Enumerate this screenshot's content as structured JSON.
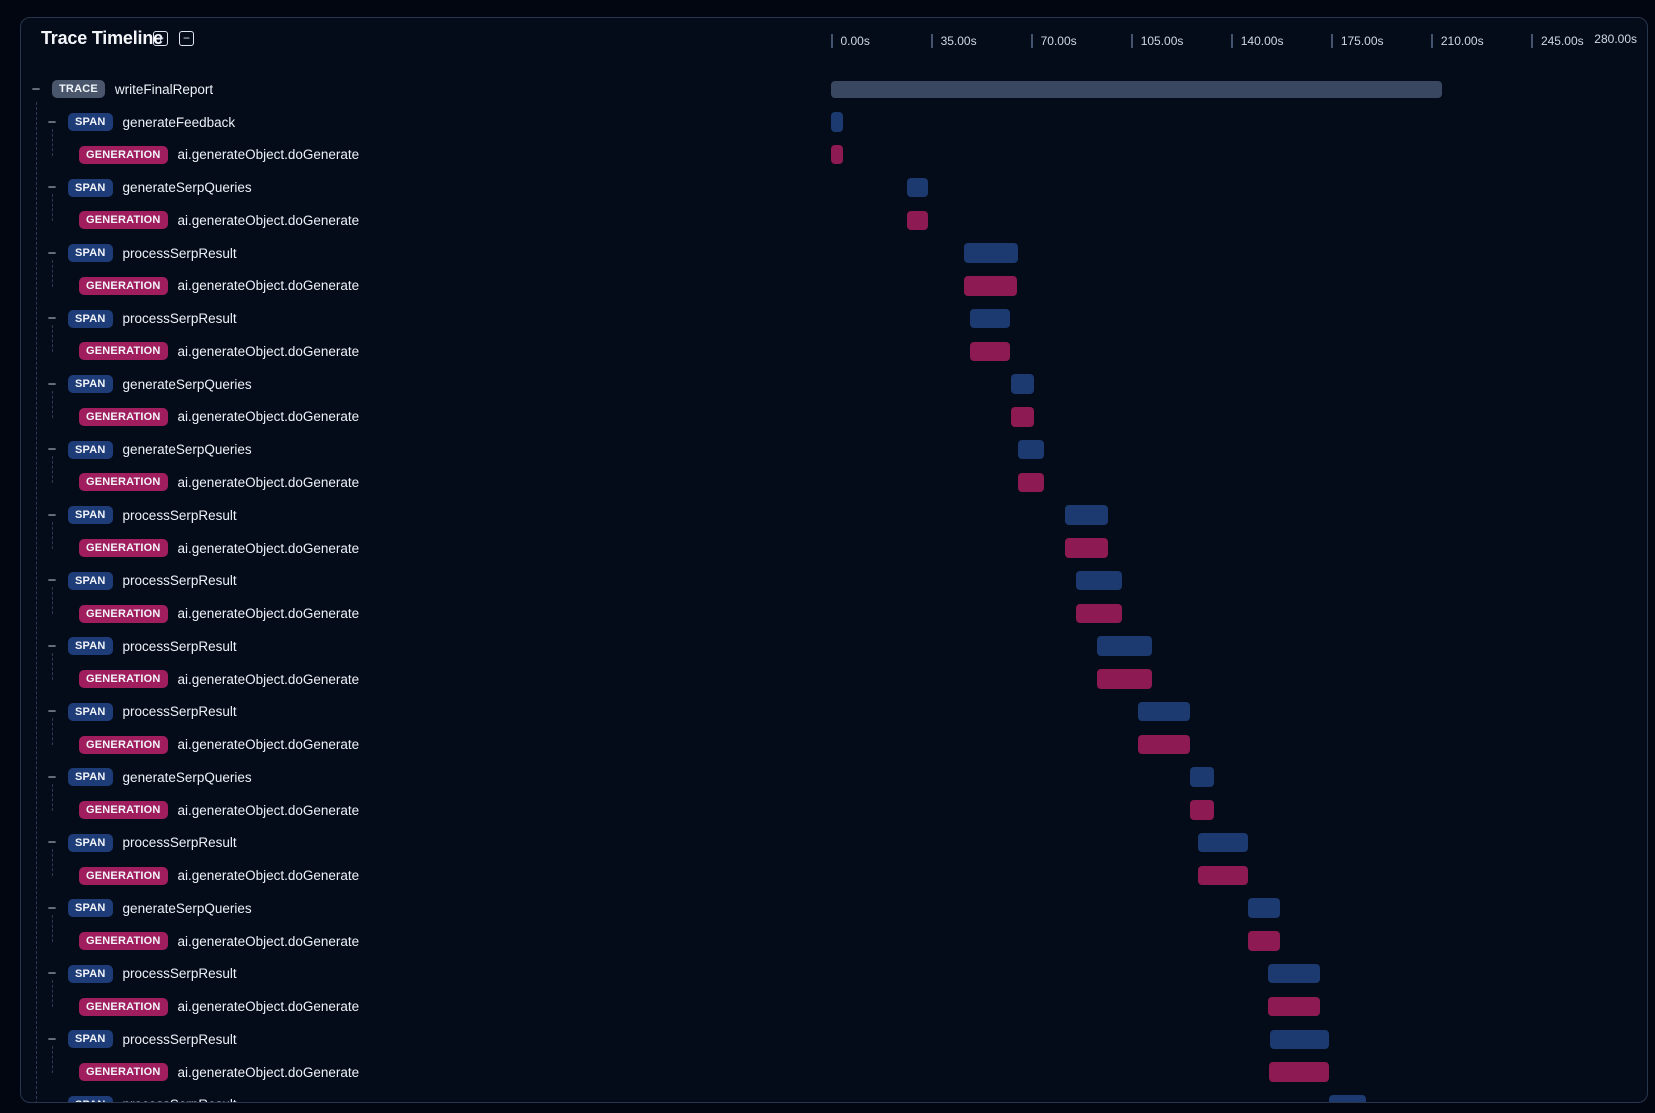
{
  "header": {
    "title": "Trace Timeline",
    "expand_all_icon": "plus-square",
    "collapse_all_icon": "minus-square",
    "expand_glyph": "+",
    "collapse_glyph": "−"
  },
  "axis": {
    "unit": "s",
    "ticks": [
      {
        "label": "0.00s",
        "t": 0
      },
      {
        "label": "35.00s",
        "t": 35
      },
      {
        "label": "70.00s",
        "t": 70
      },
      {
        "label": "105.00s",
        "t": 105
      },
      {
        "label": "140.00s",
        "t": 140
      },
      {
        "label": "175.00s",
        "t": 175
      },
      {
        "label": "210.00s",
        "t": 210
      },
      {
        "label": "245.00s",
        "t": 245
      }
    ],
    "end_label": "280.00s",
    "range_seconds": [
      0,
      280
    ]
  },
  "toggle_glyph": "−",
  "rows": [
    {
      "kind": "TRACE",
      "name": "writeFinalReport",
      "start": 0,
      "end": 213.9
    },
    {
      "kind": "SPAN",
      "name": "generateFeedback",
      "start": 0,
      "end": 4.5
    },
    {
      "kind": "GENERATION",
      "name": "ai.generateObject.doGenerate",
      "start": 0,
      "end": 4.5
    },
    {
      "kind": "SPAN",
      "name": "generateSerpQueries",
      "start": 26.9,
      "end": 34.1
    },
    {
      "kind": "GENERATION",
      "name": "ai.generateObject.doGenerate",
      "start": 26.9,
      "end": 34.1
    },
    {
      "kind": "SPAN",
      "name": "processSerpResult",
      "start": 46.7,
      "end": 65.6
    },
    {
      "kind": "GENERATION",
      "name": "ai.generateObject.doGenerate",
      "start": 46.7,
      "end": 65.3
    },
    {
      "kind": "SPAN",
      "name": "processSerpResult",
      "start": 48.7,
      "end": 62.8
    },
    {
      "kind": "GENERATION",
      "name": "ai.generateObject.doGenerate",
      "start": 48.7,
      "end": 62.7
    },
    {
      "kind": "SPAN",
      "name": "generateSerpQueries",
      "start": 63.0,
      "end": 71.2
    },
    {
      "kind": "GENERATION",
      "name": "ai.generateObject.doGenerate",
      "start": 63.0,
      "end": 71.2
    },
    {
      "kind": "SPAN",
      "name": "generateSerpQueries",
      "start": 65.6,
      "end": 74.7
    },
    {
      "kind": "GENERATION",
      "name": "ai.generateObject.doGenerate",
      "start": 65.6,
      "end": 74.7
    },
    {
      "kind": "SPAN",
      "name": "processSerpResult",
      "start": 81.9,
      "end": 97.1
    },
    {
      "kind": "GENERATION",
      "name": "ai.generateObject.doGenerate",
      "start": 81.9,
      "end": 97.1
    },
    {
      "kind": "SPAN",
      "name": "processSerpResult",
      "start": 85.9,
      "end": 102.0
    },
    {
      "kind": "GENERATION",
      "name": "ai.generateObject.doGenerate",
      "start": 85.9,
      "end": 102.0
    },
    {
      "kind": "SPAN",
      "name": "processSerpResult",
      "start": 93.1,
      "end": 112.5
    },
    {
      "kind": "GENERATION",
      "name": "ai.generateObject.doGenerate",
      "start": 93.1,
      "end": 112.5
    },
    {
      "kind": "SPAN",
      "name": "processSerpResult",
      "start": 107.6,
      "end": 125.8
    },
    {
      "kind": "GENERATION",
      "name": "ai.generateObject.doGenerate",
      "start": 107.6,
      "end": 125.8
    },
    {
      "kind": "SPAN",
      "name": "generateSerpQueries",
      "start": 125.9,
      "end": 134.1
    },
    {
      "kind": "GENERATION",
      "name": "ai.generateObject.doGenerate",
      "start": 125.9,
      "end": 134.1
    },
    {
      "kind": "SPAN",
      "name": "processSerpResult",
      "start": 128.6,
      "end": 146.0
    },
    {
      "kind": "GENERATION",
      "name": "ai.generateObject.doGenerate",
      "start": 128.6,
      "end": 146.0
    },
    {
      "kind": "SPAN",
      "name": "generateSerpQueries",
      "start": 146.2,
      "end": 157.2
    },
    {
      "kind": "GENERATION",
      "name": "ai.generateObject.doGenerate",
      "start": 146.2,
      "end": 157.2
    },
    {
      "kind": "SPAN",
      "name": "processSerpResult",
      "start": 153.1,
      "end": 171.1
    },
    {
      "kind": "GENERATION",
      "name": "ai.generateObject.doGenerate",
      "start": 153.1,
      "end": 171.1
    },
    {
      "kind": "SPAN",
      "name": "processSerpResult",
      "start": 153.8,
      "end": 174.3
    },
    {
      "kind": "GENERATION",
      "name": "ai.generateObject.doGenerate",
      "start": 153.5,
      "end": 174.3
    },
    {
      "kind": "SPAN",
      "name": "processSerpResult",
      "start": 174.3,
      "end": 187.2
    }
  ],
  "colors": {
    "page_bg": "#020610",
    "card_bg": "#040b19",
    "card_border": "#27354f",
    "title_text": "#f4f6fa",
    "icon_stroke": "#dfe6ef",
    "axis_text": "#d0d8e4",
    "axis_tick": "#45546e",
    "guide": "#2c3a55",
    "toggle": "#b6c0ce",
    "label_text": "#eef2f8",
    "badge_text": "#f2f5f9",
    "trace_badge_bg": "#49566c",
    "span_badge_bg": "#1e3c77",
    "generation_badge_bg": "#a01d5e",
    "trace_bar": "#394761",
    "span_bar": "#1c3a6f",
    "generation_bar": "#8d1a52"
  }
}
